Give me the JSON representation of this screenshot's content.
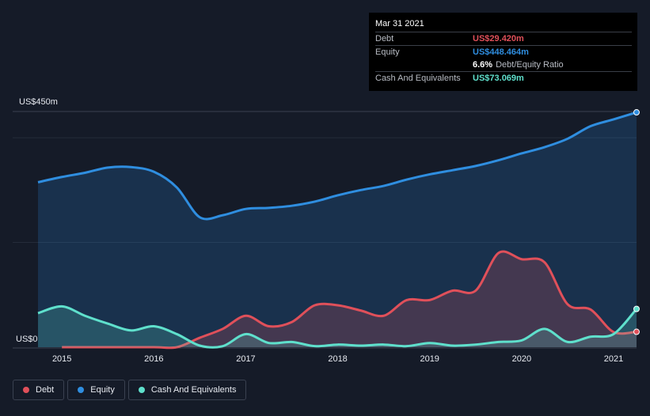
{
  "tooltip": {
    "date": "Mar 31 2021",
    "debt_label": "Debt",
    "debt_value": "US$29.420m",
    "equity_label": "Equity",
    "equity_value": "US$448.464m",
    "ratio_value": "6.6%",
    "ratio_label": "Debt/Equity Ratio",
    "cash_label": "Cash And Equivalents",
    "cash_value": "US$73.069m"
  },
  "legend": {
    "debt": "Debt",
    "equity": "Equity",
    "cash": "Cash And Equivalents"
  },
  "colors": {
    "debt": "#e0505a",
    "equity": "#2f8ee0",
    "cash": "#5fe0cc",
    "background": "#151b28"
  },
  "chart_data": {
    "type": "area",
    "ylabel_top": "US$450m",
    "ylabel_bottom": "US$0",
    "ylim": [
      0,
      450
    ],
    "xlim": [
      2014.74,
      2021.25
    ],
    "x_ticks": [
      "2015",
      "2016",
      "2017",
      "2018",
      "2019",
      "2020",
      "2021"
    ],
    "grid": true,
    "legend_position": "bottom-left",
    "series": [
      {
        "name": "Debt",
        "points": [
          [
            2015.0,
            0
          ],
          [
            2015.5,
            0
          ],
          [
            2016.0,
            0
          ],
          [
            2016.25,
            0
          ],
          [
            2016.5,
            18
          ],
          [
            2016.75,
            35
          ],
          [
            2017.0,
            60
          ],
          [
            2017.25,
            40
          ],
          [
            2017.5,
            48
          ],
          [
            2017.75,
            80
          ],
          [
            2018.0,
            80
          ],
          [
            2018.25,
            70
          ],
          [
            2018.5,
            60
          ],
          [
            2018.75,
            90
          ],
          [
            2019.0,
            90
          ],
          [
            2019.25,
            108
          ],
          [
            2019.5,
            108
          ],
          [
            2019.75,
            180
          ],
          [
            2020.0,
            168
          ],
          [
            2020.25,
            162
          ],
          [
            2020.5,
            82
          ],
          [
            2020.75,
            72
          ],
          [
            2021.0,
            29
          ],
          [
            2021.25,
            29.42
          ]
        ]
      },
      {
        "name": "Equity",
        "points": [
          [
            2014.74,
            315
          ],
          [
            2015.0,
            325
          ],
          [
            2015.25,
            333
          ],
          [
            2015.5,
            343
          ],
          [
            2015.75,
            344
          ],
          [
            2016.0,
            335
          ],
          [
            2016.25,
            305
          ],
          [
            2016.5,
            248
          ],
          [
            2016.75,
            252
          ],
          [
            2017.0,
            264
          ],
          [
            2017.25,
            266
          ],
          [
            2017.5,
            270
          ],
          [
            2017.75,
            278
          ],
          [
            2018.0,
            290
          ],
          [
            2018.25,
            300
          ],
          [
            2018.5,
            308
          ],
          [
            2018.75,
            320
          ],
          [
            2019.0,
            330
          ],
          [
            2019.25,
            338
          ],
          [
            2019.5,
            346
          ],
          [
            2019.75,
            357
          ],
          [
            2020.0,
            370
          ],
          [
            2020.25,
            382
          ],
          [
            2020.5,
            398
          ],
          [
            2020.75,
            422
          ],
          [
            2021.0,
            435
          ],
          [
            2021.25,
            448.464
          ]
        ]
      },
      {
        "name": "Cash And Equivalents",
        "points": [
          [
            2014.74,
            65
          ],
          [
            2015.0,
            78
          ],
          [
            2015.25,
            60
          ],
          [
            2015.5,
            45
          ],
          [
            2015.75,
            32
          ],
          [
            2016.0,
            40
          ],
          [
            2016.25,
            25
          ],
          [
            2016.5,
            3
          ],
          [
            2016.75,
            2
          ],
          [
            2017.0,
            25
          ],
          [
            2017.25,
            8
          ],
          [
            2017.5,
            10
          ],
          [
            2017.75,
            2
          ],
          [
            2018.0,
            5
          ],
          [
            2018.25,
            3
          ],
          [
            2018.5,
            5
          ],
          [
            2018.75,
            2
          ],
          [
            2019.0,
            8
          ],
          [
            2019.25,
            3
          ],
          [
            2019.5,
            5
          ],
          [
            2019.75,
            10
          ],
          [
            2020.0,
            13
          ],
          [
            2020.25,
            35
          ],
          [
            2020.5,
            10
          ],
          [
            2020.75,
            20
          ],
          [
            2021.0,
            25
          ],
          [
            2021.25,
            73.069
          ]
        ]
      }
    ]
  }
}
